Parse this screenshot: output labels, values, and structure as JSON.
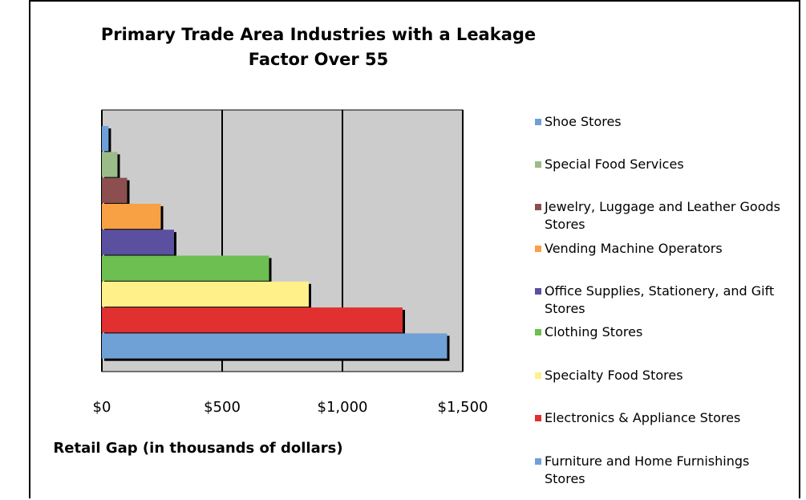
{
  "chart_data": {
    "type": "bar",
    "orientation": "horizontal",
    "title": "Primary Trade Area Industries with a Leakage Factor Over 55",
    "x_label": "Retail Gap (in thousands of dollars)",
    "categories": [
      "Shoe Stores",
      "Special Food Services",
      "Jewelry, Luggage and Leather Goods Stores",
      "Vending Machine Operators",
      "Office Supplies, Stationery, and Gift Stores",
      "Clothing Stores",
      "Specialty Food Stores",
      "Electronics & Appliance Stores",
      "Furniture and Home Furnishings Stores"
    ],
    "values": [
      28,
      65,
      105,
      245,
      300,
      695,
      860,
      1250,
      1435
    ],
    "colors": [
      "#6f9fd8",
      "#9bbb88",
      "#8b4f4f",
      "#f8a044",
      "#5b4fa0",
      "#6cbf50",
      "#fff08a",
      "#e0302f",
      "#6fa1d6"
    ],
    "xlim": [
      0,
      1500
    ],
    "xticks": [
      {
        "value": 0,
        "label": "$0"
      },
      {
        "value": 500,
        "label": "$500"
      },
      {
        "value": 1000,
        "label": "$1,000"
      },
      {
        "value": 1500,
        "label": "$1,500"
      }
    ],
    "grid": true
  }
}
